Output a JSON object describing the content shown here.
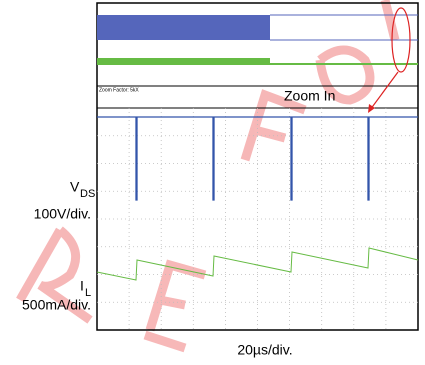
{
  "overview": {
    "zoom_factor": "Zoom Factor: 5kX"
  },
  "annotation": "Zoom In",
  "channels": [
    {
      "symbol": "V",
      "subscript": "DS",
      "scale": "100V/div."
    },
    {
      "symbol": "I",
      "subscript": "L",
      "scale": "500mA/div."
    }
  ],
  "timebase": "20µs/div."
}
